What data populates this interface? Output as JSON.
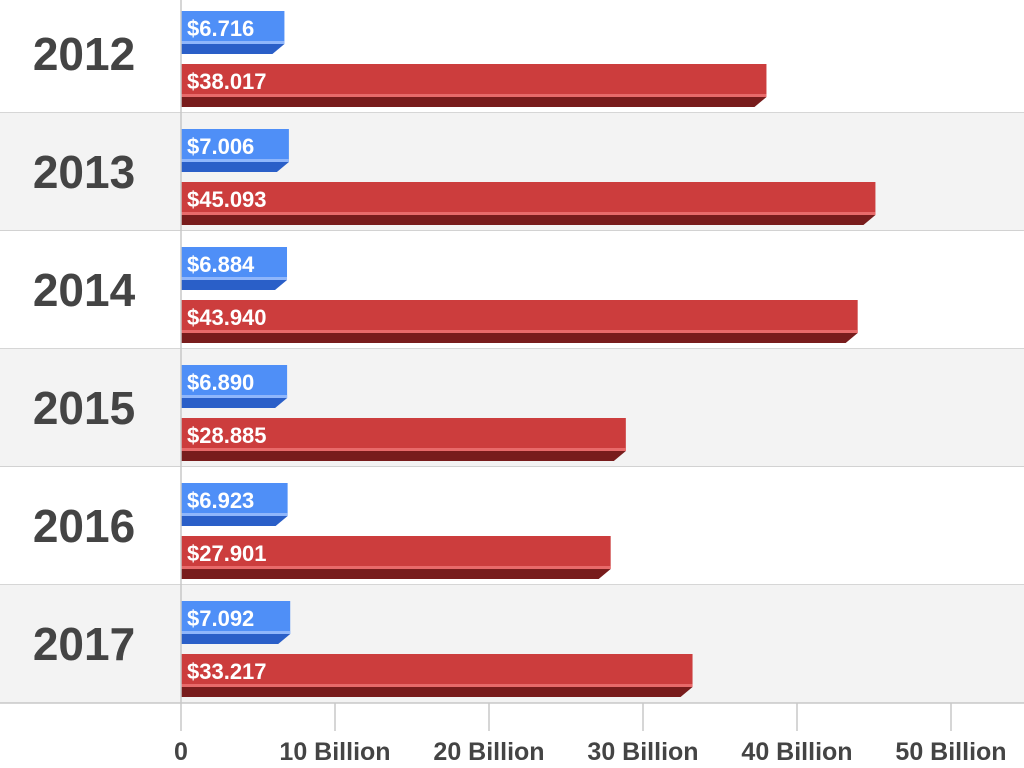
{
  "chart_data": {
    "type": "bar",
    "orientation": "horizontal",
    "categories": [
      "2012",
      "2013",
      "2014",
      "2015",
      "2016",
      "2017"
    ],
    "series": [
      {
        "name": "blue",
        "color": "#4f8ff7",
        "shade": "#2a5fc8",
        "values": [
          6.716,
          7.006,
          6.884,
          6.89,
          6.923,
          7.092
        ],
        "labels": [
          "$6.716",
          "$7.006",
          "$6.884",
          "$6.890",
          "$6.923",
          "$7.092"
        ]
      },
      {
        "name": "red",
        "color": "#cc3d3d",
        "shade": "#781c1c",
        "values": [
          38.017,
          45.093,
          43.94,
          28.885,
          27.901,
          33.217
        ],
        "labels": [
          "$38.017",
          "$45.093",
          "$43.940",
          "$28.885",
          "$27.901",
          "$33.217"
        ]
      }
    ],
    "xlim": [
      0,
      50
    ],
    "xticks": [
      0,
      10,
      20,
      30,
      40,
      50
    ],
    "xtick_labels": [
      "0",
      "10 Billion",
      "20 Billion",
      "30 Billion",
      "40 Billion",
      "50 Billion"
    ],
    "grid": false,
    "legend": "none"
  }
}
